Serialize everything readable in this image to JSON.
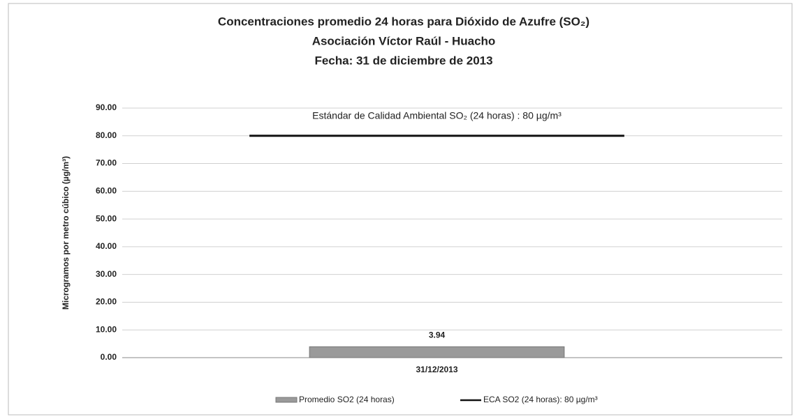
{
  "chart_data": {
    "type": "bar",
    "title": "Concentraciones promedio 24 horas para Dióxido de Azufre (SO₂)",
    "subtitle": "Asociación Víctor Raúl - Huacho",
    "date_line": "Fecha: 31 de diciembre de 2013",
    "y_label": "Microgramos por metro cúbico (µg/m³)",
    "annotation": "Estándar de Calidad Ambiental SO₂ (24 horas) : 80 µg/m³",
    "categories": [
      "31/12/2013"
    ],
    "series": [
      {
        "name": "Promedio SO2 (24 horas)",
        "color": "#9a9a9a",
        "type": "bar",
        "values": [
          3.94
        ]
      },
      {
        "name": "ECA SO2 (24 horas): 80 µg/m³",
        "color": "#111111",
        "type": "line",
        "values": [
          80
        ]
      }
    ],
    "ylim": [
      0,
      90
    ],
    "yticks": [
      {
        "value": 0,
        "label": "0.00"
      },
      {
        "value": 10,
        "label": "10.00"
      },
      {
        "value": 20,
        "label": "20.00"
      },
      {
        "value": 30,
        "label": "30.00"
      },
      {
        "value": 40,
        "label": "40.00"
      },
      {
        "value": 50,
        "label": "50.00"
      },
      {
        "value": 60,
        "label": "60.00"
      },
      {
        "value": 70,
        "label": "70.00"
      },
      {
        "value": 80,
        "label": "80.00"
      },
      {
        "value": 90,
        "label": "90.00"
      }
    ],
    "grid": true,
    "legend": "bottom"
  }
}
